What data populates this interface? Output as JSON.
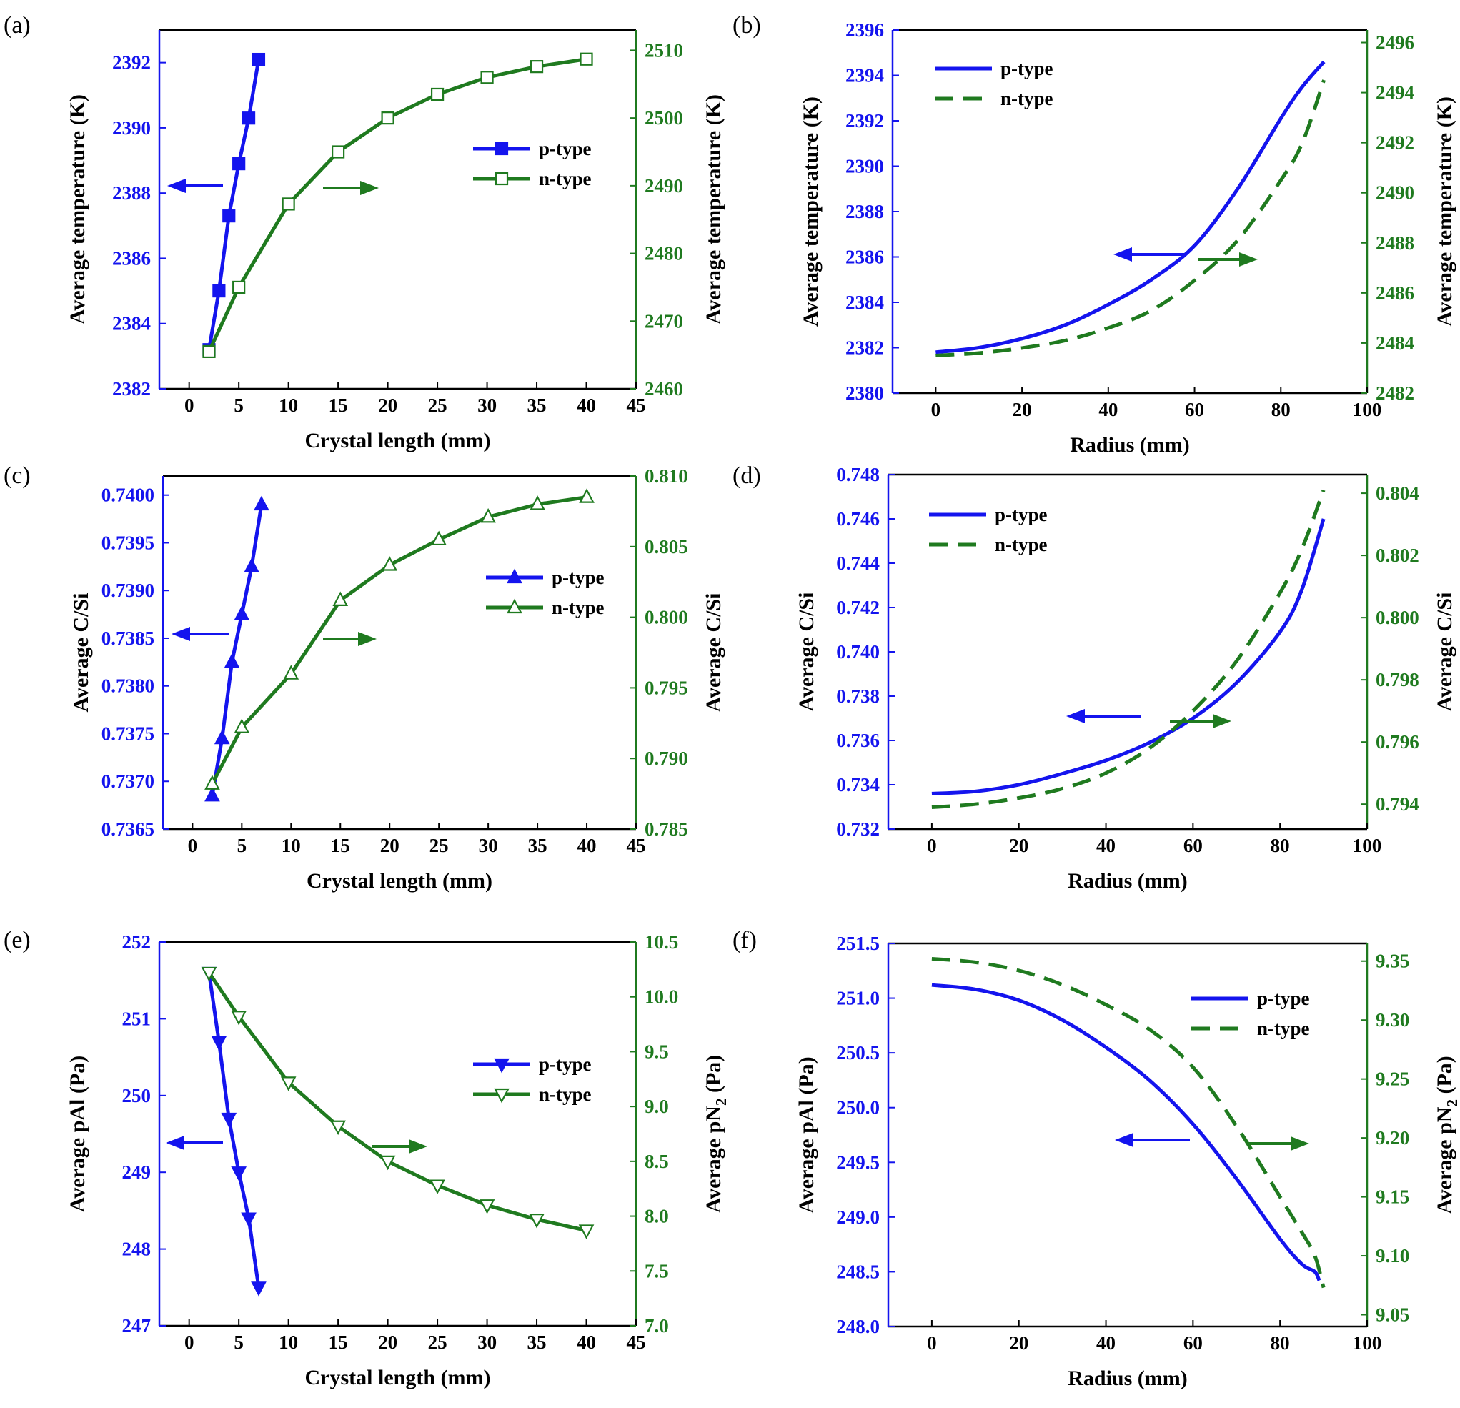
{
  "colors": {
    "p": "#1414ee",
    "n": "#1f7a1f",
    "axis": "#000000"
  },
  "chart_data": [
    {
      "id": "a",
      "panel_label": "(a)",
      "type": "line",
      "xlabel": "Crystal length (mm)",
      "ylabel_left": "Average temperature (K)",
      "ylabel_right": "Average temperature (K)",
      "xlim": [
        -3,
        45
      ],
      "xticks": [
        0,
        5,
        10,
        15,
        20,
        25,
        30,
        35,
        40,
        45
      ],
      "ylim_left": [
        2382,
        2393
      ],
      "yticks_left": [
        2382,
        2384,
        2386,
        2388,
        2390,
        2392
      ],
      "ytick_decimals_left": 0,
      "ylim_right": [
        2460,
        2513
      ],
      "yticks_right": [
        2460,
        2470,
        2480,
        2490,
        2500,
        2510
      ],
      "ytick_decimals_right": 0,
      "legend_position": "right",
      "series": [
        {
          "name": "p-type",
          "axis": "left",
          "color": "p",
          "style": "solid",
          "marker": "square",
          "filled": true,
          "x": [
            2,
            3,
            4,
            5,
            6,
            7
          ],
          "y": [
            2383.2,
            2385.0,
            2387.3,
            2388.9,
            2390.3,
            2392.1
          ]
        },
        {
          "name": "n-type",
          "axis": "right",
          "color": "n",
          "style": "solid",
          "marker": "square",
          "filled": false,
          "x": [
            2,
            5,
            10,
            15,
            20,
            25,
            30,
            35,
            40
          ],
          "y": [
            2465.5,
            2475.0,
            2487.3,
            2495.0,
            2500.0,
            2503.5,
            2506.0,
            2507.6,
            2508.7
          ]
        }
      ]
    },
    {
      "id": "b",
      "panel_label": "(b)",
      "type": "line",
      "xlabel": "Radius (mm)",
      "ylabel_left": "Average temperature (K)",
      "ylabel_right": "Average temperature (K)",
      "xlim": [
        -10,
        100
      ],
      "xticks": [
        0,
        20,
        40,
        60,
        80,
        100
      ],
      "ylim_left": [
        2380,
        2396
      ],
      "yticks_left": [
        2380,
        2382,
        2384,
        2386,
        2388,
        2390,
        2392,
        2394,
        2396
      ],
      "ytick_decimals_left": 0,
      "ylim_right": [
        2482,
        2496.5
      ],
      "yticks_right": [
        2482,
        2484,
        2486,
        2488,
        2490,
        2492,
        2494,
        2496
      ],
      "ytick_decimals_right": 0,
      "legend_position": "top-left",
      "series": [
        {
          "name": "p-type",
          "axis": "left",
          "color": "p",
          "style": "solid",
          "marker": "none",
          "x": [
            0,
            10,
            20,
            30,
            40,
            50,
            60,
            70,
            80,
            85,
            90
          ],
          "y": [
            2381.8,
            2382.0,
            2382.4,
            2383.0,
            2383.9,
            2385.0,
            2386.5,
            2389.0,
            2392.1,
            2393.5,
            2394.6
          ]
        },
        {
          "name": "n-type",
          "axis": "right",
          "color": "n",
          "style": "dashed",
          "marker": "none",
          "x": [
            0,
            10,
            20,
            30,
            40,
            50,
            60,
            70,
            80,
            85,
            90
          ],
          "y": [
            2483.5,
            2483.6,
            2483.8,
            2484.1,
            2484.6,
            2485.3,
            2486.5,
            2488.1,
            2490.5,
            2492.0,
            2494.5
          ]
        }
      ]
    },
    {
      "id": "c",
      "panel_label": "(c)",
      "type": "line",
      "xlabel": "Crystal length (mm)",
      "ylabel_left": "Average C/Si",
      "ylabel_right": "Average C/Si",
      "xlim": [
        -3,
        45
      ],
      "xticks": [
        0,
        5,
        10,
        15,
        20,
        25,
        30,
        35,
        40,
        45
      ],
      "ylim_left": [
        0.7365,
        0.7402
      ],
      "yticks_left": [
        0.7365,
        0.737,
        0.7375,
        0.738,
        0.7385,
        0.739,
        0.7395,
        0.74
      ],
      "ytick_decimals_left": 4,
      "ylim_right": [
        0.785,
        0.81
      ],
      "yticks_right": [
        0.785,
        0.79,
        0.795,
        0.8,
        0.805,
        0.81
      ],
      "ytick_decimals_right": 3,
      "legend_position": "right",
      "series": [
        {
          "name": "p-type",
          "axis": "left",
          "color": "p",
          "style": "solid",
          "marker": "triangle-up",
          "filled": true,
          "x": [
            2,
            3,
            4,
            5,
            6,
            7
          ],
          "y": [
            0.73685,
            0.73745,
            0.73825,
            0.73875,
            0.73925,
            0.7399
          ]
        },
        {
          "name": "n-type",
          "axis": "right",
          "color": "n",
          "style": "solid",
          "marker": "triangle-up",
          "filled": false,
          "x": [
            2,
            5,
            10,
            15,
            20,
            25,
            30,
            35,
            40
          ],
          "y": [
            0.7882,
            0.7922,
            0.796,
            0.8012,
            0.8037,
            0.8055,
            0.8071,
            0.808,
            0.8085
          ]
        }
      ]
    },
    {
      "id": "d",
      "panel_label": "(d)",
      "type": "line",
      "xlabel": "Radius (mm)",
      "ylabel_left": "Average C/Si",
      "ylabel_right": "Average C/Si",
      "xlim": [
        -10,
        100
      ],
      "xticks": [
        0,
        20,
        40,
        60,
        80,
        100
      ],
      "ylim_left": [
        0.732,
        0.748
      ],
      "yticks_left": [
        0.732,
        0.734,
        0.736,
        0.738,
        0.74,
        0.742,
        0.744,
        0.746,
        0.748
      ],
      "ytick_decimals_left": 3,
      "ylim_right": [
        0.7932,
        0.8046
      ],
      "yticks_right": [
        0.794,
        0.796,
        0.798,
        0.8,
        0.802,
        0.804
      ],
      "ytick_decimals_right": 3,
      "legend_position": "top-left",
      "series": [
        {
          "name": "p-type",
          "axis": "left",
          "color": "p",
          "style": "solid",
          "marker": "none",
          "x": [
            0,
            10,
            20,
            30,
            40,
            50,
            60,
            70,
            80,
            85,
            90
          ],
          "y": [
            0.7336,
            0.7337,
            0.734,
            0.7345,
            0.7351,
            0.7359,
            0.737,
            0.7386,
            0.7409,
            0.7428,
            0.746
          ]
        },
        {
          "name": "n-type",
          "axis": "right",
          "color": "n",
          "style": "dashed",
          "marker": "none",
          "x": [
            0,
            10,
            20,
            30,
            40,
            50,
            60,
            70,
            80,
            85,
            90
          ],
          "y": [
            0.7939,
            0.794,
            0.7942,
            0.7945,
            0.795,
            0.7958,
            0.797,
            0.7986,
            0.8008,
            0.8022,
            0.8041
          ]
        }
      ]
    },
    {
      "id": "e",
      "panel_label": "(e)",
      "type": "line",
      "xlabel": "Crystal length (mm)",
      "ylabel_left": "Average pAl (Pa)",
      "ylabel_right": "Average pN",
      "ylabel_right_sub": "2",
      "ylabel_right_suffix": " (Pa)",
      "xlim": [
        -3,
        45
      ],
      "xticks": [
        0,
        5,
        10,
        15,
        20,
        25,
        30,
        35,
        40,
        45
      ],
      "ylim_left": [
        247,
        252
      ],
      "yticks_left": [
        247,
        248,
        249,
        250,
        251,
        252
      ],
      "ytick_decimals_left": 0,
      "ylim_right": [
        7.0,
        10.5
      ],
      "yticks_right": [
        7.0,
        7.5,
        8.0,
        8.5,
        9.0,
        9.5,
        10.0,
        10.5
      ],
      "ytick_decimals_right": 1,
      "legend_position": "right",
      "series": [
        {
          "name": "p-type",
          "axis": "left",
          "color": "p",
          "style": "solid",
          "marker": "triangle-down",
          "filled": true,
          "x": [
            2,
            3,
            4,
            5,
            6,
            7
          ],
          "y": [
            251.6,
            250.7,
            249.7,
            249.0,
            248.4,
            247.5
          ]
        },
        {
          "name": "n-type",
          "axis": "right",
          "color": "n",
          "style": "solid",
          "marker": "triangle-down",
          "filled": false,
          "x": [
            2,
            5,
            10,
            15,
            20,
            25,
            30,
            35,
            40
          ],
          "y": [
            10.22,
            9.82,
            9.22,
            8.82,
            8.5,
            8.28,
            8.1,
            7.97,
            7.87
          ]
        }
      ]
    },
    {
      "id": "f",
      "panel_label": "(f)",
      "type": "line",
      "xlabel": "Radius (mm)",
      "ylabel_left": "Average pAl (Pa)",
      "ylabel_right": "Average pN",
      "ylabel_right_sub": "2",
      "ylabel_right_suffix": " (Pa)",
      "xlim": [
        -10,
        100
      ],
      "xticks": [
        0,
        20,
        40,
        60,
        80,
        100
      ],
      "ylim_left": [
        248.0,
        251.5
      ],
      "yticks_left": [
        248.0,
        248.5,
        249.0,
        249.5,
        250.0,
        250.5,
        251.0,
        251.5
      ],
      "ytick_decimals_left": 1,
      "ylim_right": [
        9.04,
        9.365
      ],
      "yticks_right": [
        9.05,
        9.1,
        9.15,
        9.2,
        9.25,
        9.3,
        9.35
      ],
      "ytick_decimals_right": 2,
      "legend_position": "top-right",
      "series": [
        {
          "name": "p-type",
          "axis": "left",
          "color": "p",
          "style": "solid",
          "marker": "none",
          "x": [
            0,
            10,
            20,
            30,
            40,
            50,
            60,
            70,
            80,
            85,
            88,
            89
          ],
          "y": [
            251.12,
            251.08,
            250.98,
            250.8,
            250.55,
            250.25,
            249.85,
            249.35,
            248.8,
            248.57,
            248.5,
            248.42
          ]
        },
        {
          "name": "n-type",
          "axis": "right",
          "color": "n",
          "style": "dashed",
          "marker": "none",
          "x": [
            0,
            10,
            20,
            30,
            40,
            50,
            60,
            70,
            80,
            85,
            88,
            90
          ],
          "y": [
            9.352,
            9.349,
            9.342,
            9.33,
            9.313,
            9.292,
            9.26,
            9.21,
            9.15,
            9.12,
            9.1,
            9.073
          ]
        }
      ]
    }
  ]
}
